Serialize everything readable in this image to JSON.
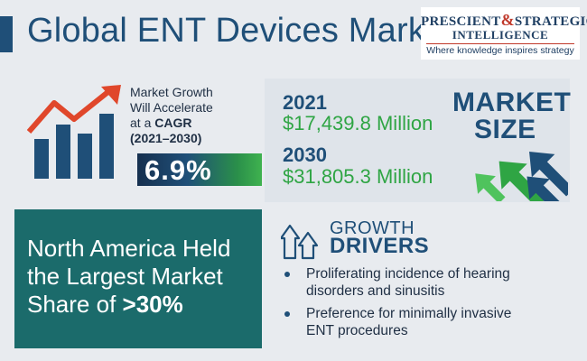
{
  "header": {
    "title": "Global ENT Devices Market"
  },
  "logo": {
    "line1_a": "PRESCIENT",
    "line1_amp": "&",
    "line1_b": "STRATEGIC",
    "line2": "INTELLIGENCE",
    "tagline": "Where knowledge inspires strategy"
  },
  "cagr": {
    "line1": "Market Growth",
    "line2": "Will Accelerate",
    "line3_prefix": "at a ",
    "line3_bold": "CAGR",
    "line4": "(2021–2030)",
    "value": "6.9%",
    "icon": "bar-chart-growth-icon"
  },
  "market_size": {
    "label_1": "MARKET",
    "label_2": "SIZE",
    "entries": [
      {
        "year": "2021",
        "value": "$17,439.8 Million"
      },
      {
        "year": "2030",
        "value": "$31,805.3 Million"
      }
    ],
    "icon": "upward-arrows-icon"
  },
  "north_america": {
    "line1": "North America Held",
    "line2": "the Largest Market",
    "line3_prefix": "Share of ",
    "line3_bold": ">30%"
  },
  "drivers": {
    "label_1": "GROWTH",
    "label_2": "DRIVERS",
    "icon": "growth-arrows-icon",
    "items": [
      {
        "line1": "Proliferating incidence of hearing",
        "line2": "disorders and sinusitis"
      },
      {
        "line1": "Preference for minimally invasive",
        "line2": "ENT procedures"
      }
    ]
  },
  "colors": {
    "navy": "#1f4f78",
    "green": "#2fa544",
    "teal": "#1b6b6b",
    "red": "#e0472b",
    "background": "#e8ebef"
  }
}
